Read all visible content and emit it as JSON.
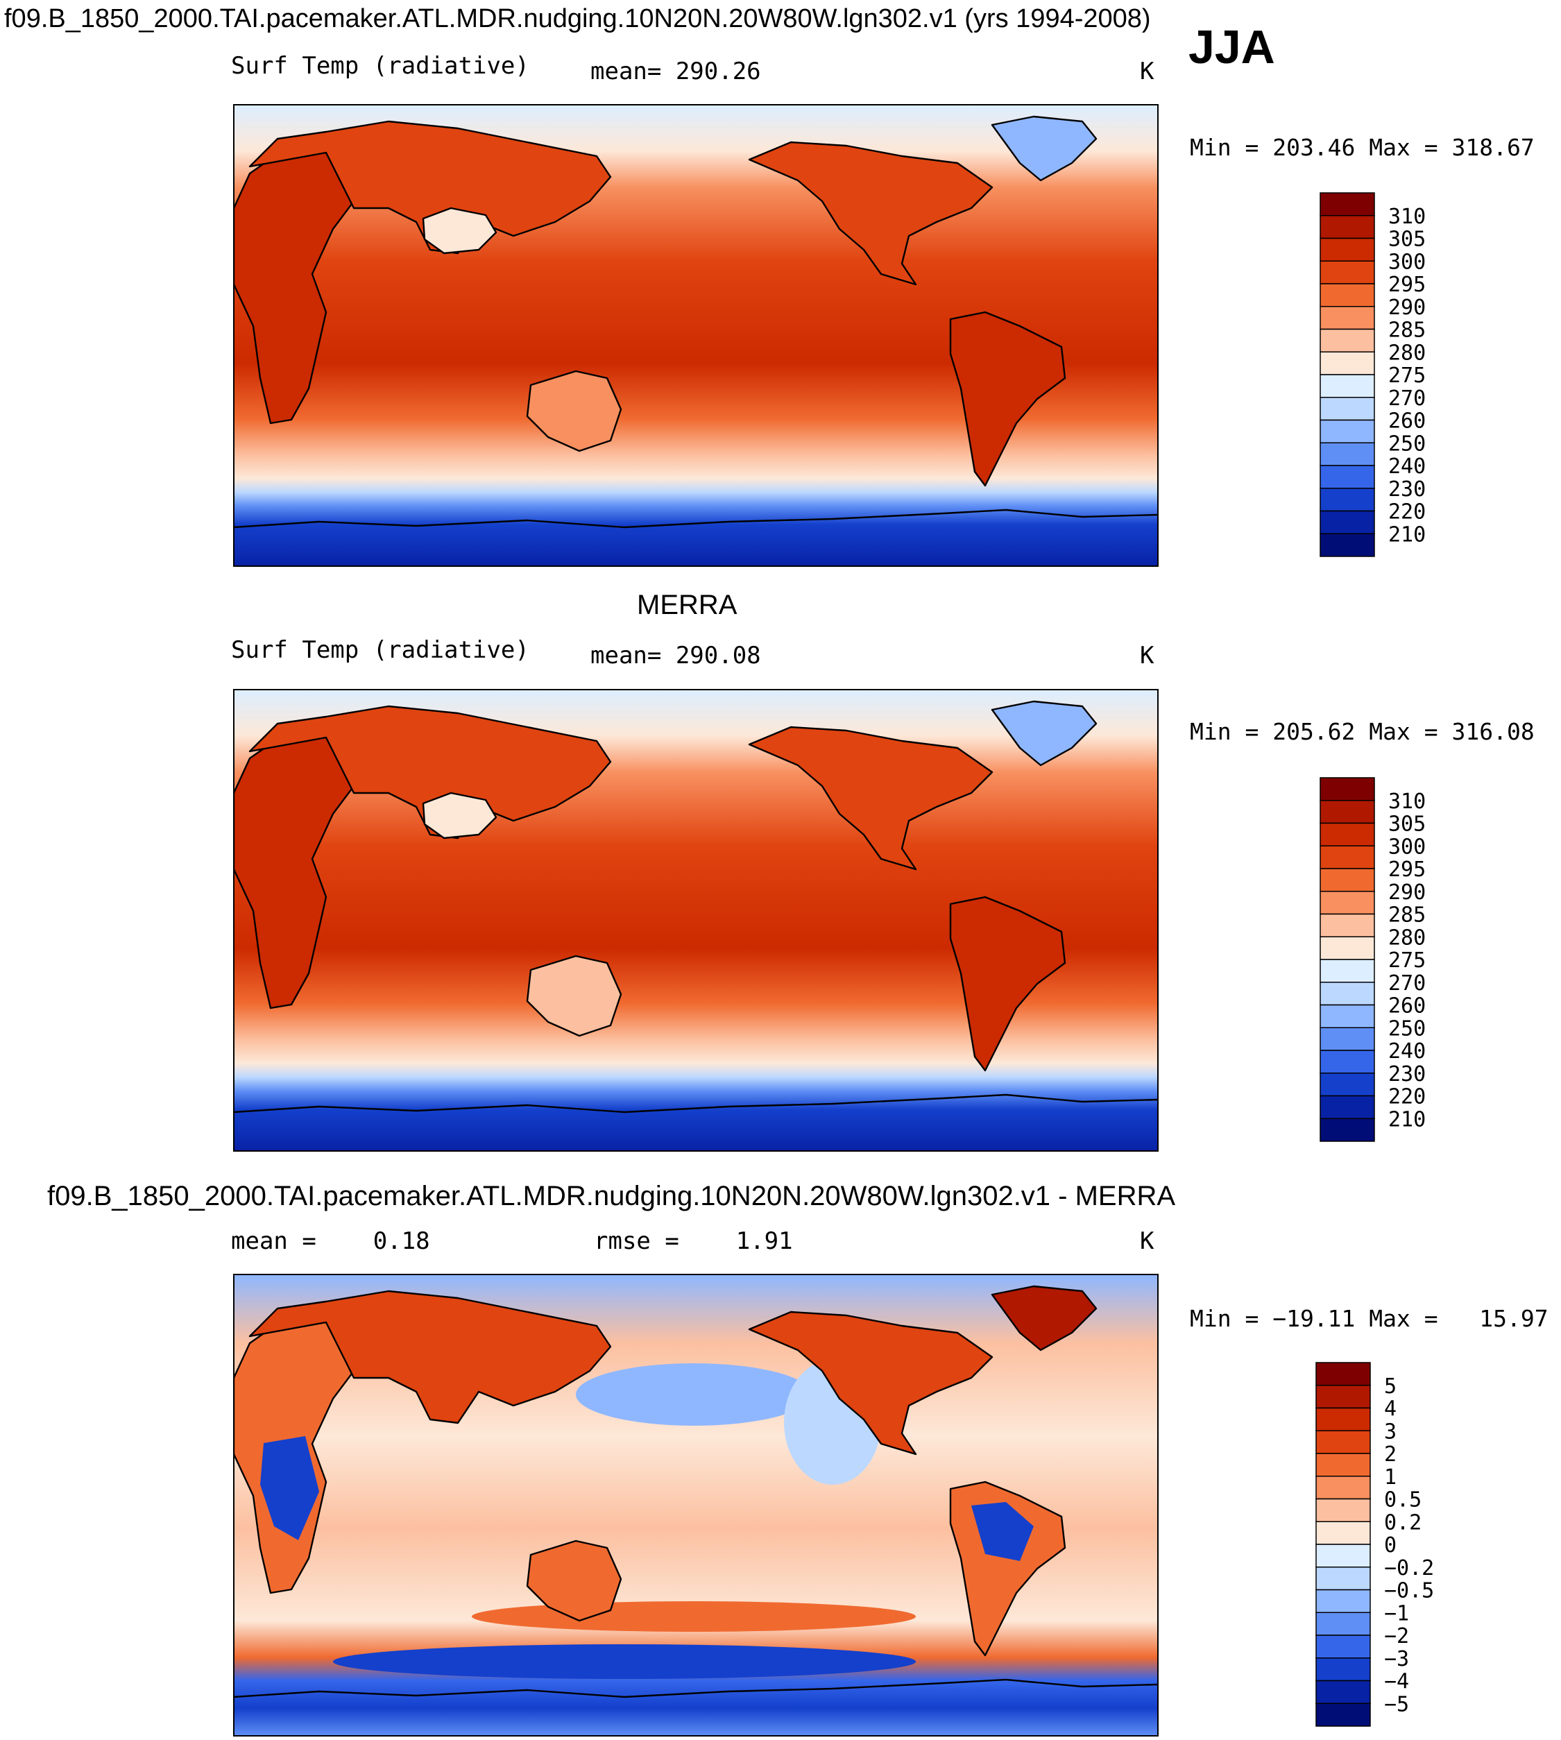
{
  "figure": {
    "title": "f09.B_1850_2000.TAI.pacemaker.ATL.MDR.nudging.10N20N.20W80W.lgn302.v1 (yrs 1994-2008)",
    "season": "JJA"
  },
  "panels": [
    {
      "heading": "",
      "variable": "Surf Temp (radiative)",
      "stats": "mean= 290.26",
      "units": "K",
      "minmax": "Min = 203.46 Max = 318.67",
      "colorbar_labels": [
        "310",
        "305",
        "300",
        "295",
        "290",
        "285",
        "280",
        "275",
        "270",
        "260",
        "250",
        "240",
        "230",
        "220",
        "210"
      ],
      "colorbar_colors": [
        "#7f0000",
        "#b01800",
        "#cc2a00",
        "#e04410",
        "#f06a30",
        "#f89060",
        "#fcc0a0",
        "#fde8d8",
        "#dceeff",
        "#bcd8ff",
        "#8fb7ff",
        "#5f8ff5",
        "#3566ea",
        "#1440cc",
        "#0822a5",
        "#000d77"
      ]
    },
    {
      "heading": "MERRA",
      "variable": "Surf Temp (radiative)",
      "stats": "mean= 290.08",
      "units": "K",
      "minmax": "Min = 205.62 Max = 316.08",
      "colorbar_labels": [
        "310",
        "305",
        "300",
        "295",
        "290",
        "285",
        "280",
        "275",
        "270",
        "260",
        "250",
        "240",
        "230",
        "220",
        "210"
      ],
      "colorbar_colors": [
        "#7f0000",
        "#b01800",
        "#cc2a00",
        "#e04410",
        "#f06a30",
        "#f89060",
        "#fcc0a0",
        "#fde8d8",
        "#dceeff",
        "#bcd8ff",
        "#8fb7ff",
        "#5f8ff5",
        "#3566ea",
        "#1440cc",
        "#0822a5",
        "#000d77"
      ]
    },
    {
      "heading": "f09.B_1850_2000.TAI.pacemaker.ATL.MDR.nudging.10N20N.20W80W.lgn302.v1 - MERRA",
      "variable": "mean =    0.18",
      "stats": "rmse =    1.91",
      "units": "K",
      "minmax": "Min = −19.11 Max =   15.97",
      "colorbar_labels": [
        "5",
        "4",
        "3",
        "2",
        "1",
        "0.5",
        "0.2",
        "0",
        "−0.2",
        "−0.5",
        "−1",
        "−2",
        "−3",
        "−4",
        "−5"
      ],
      "colorbar_colors": [
        "#7f0000",
        "#b01800",
        "#cc2a00",
        "#e04410",
        "#f06a30",
        "#f89060",
        "#fcc0a0",
        "#fde8d8",
        "#dceeff",
        "#bcd8ff",
        "#8fb7ff",
        "#5f8ff5",
        "#3566ea",
        "#1440cc",
        "#0822a5",
        "#000d77"
      ]
    }
  ]
}
